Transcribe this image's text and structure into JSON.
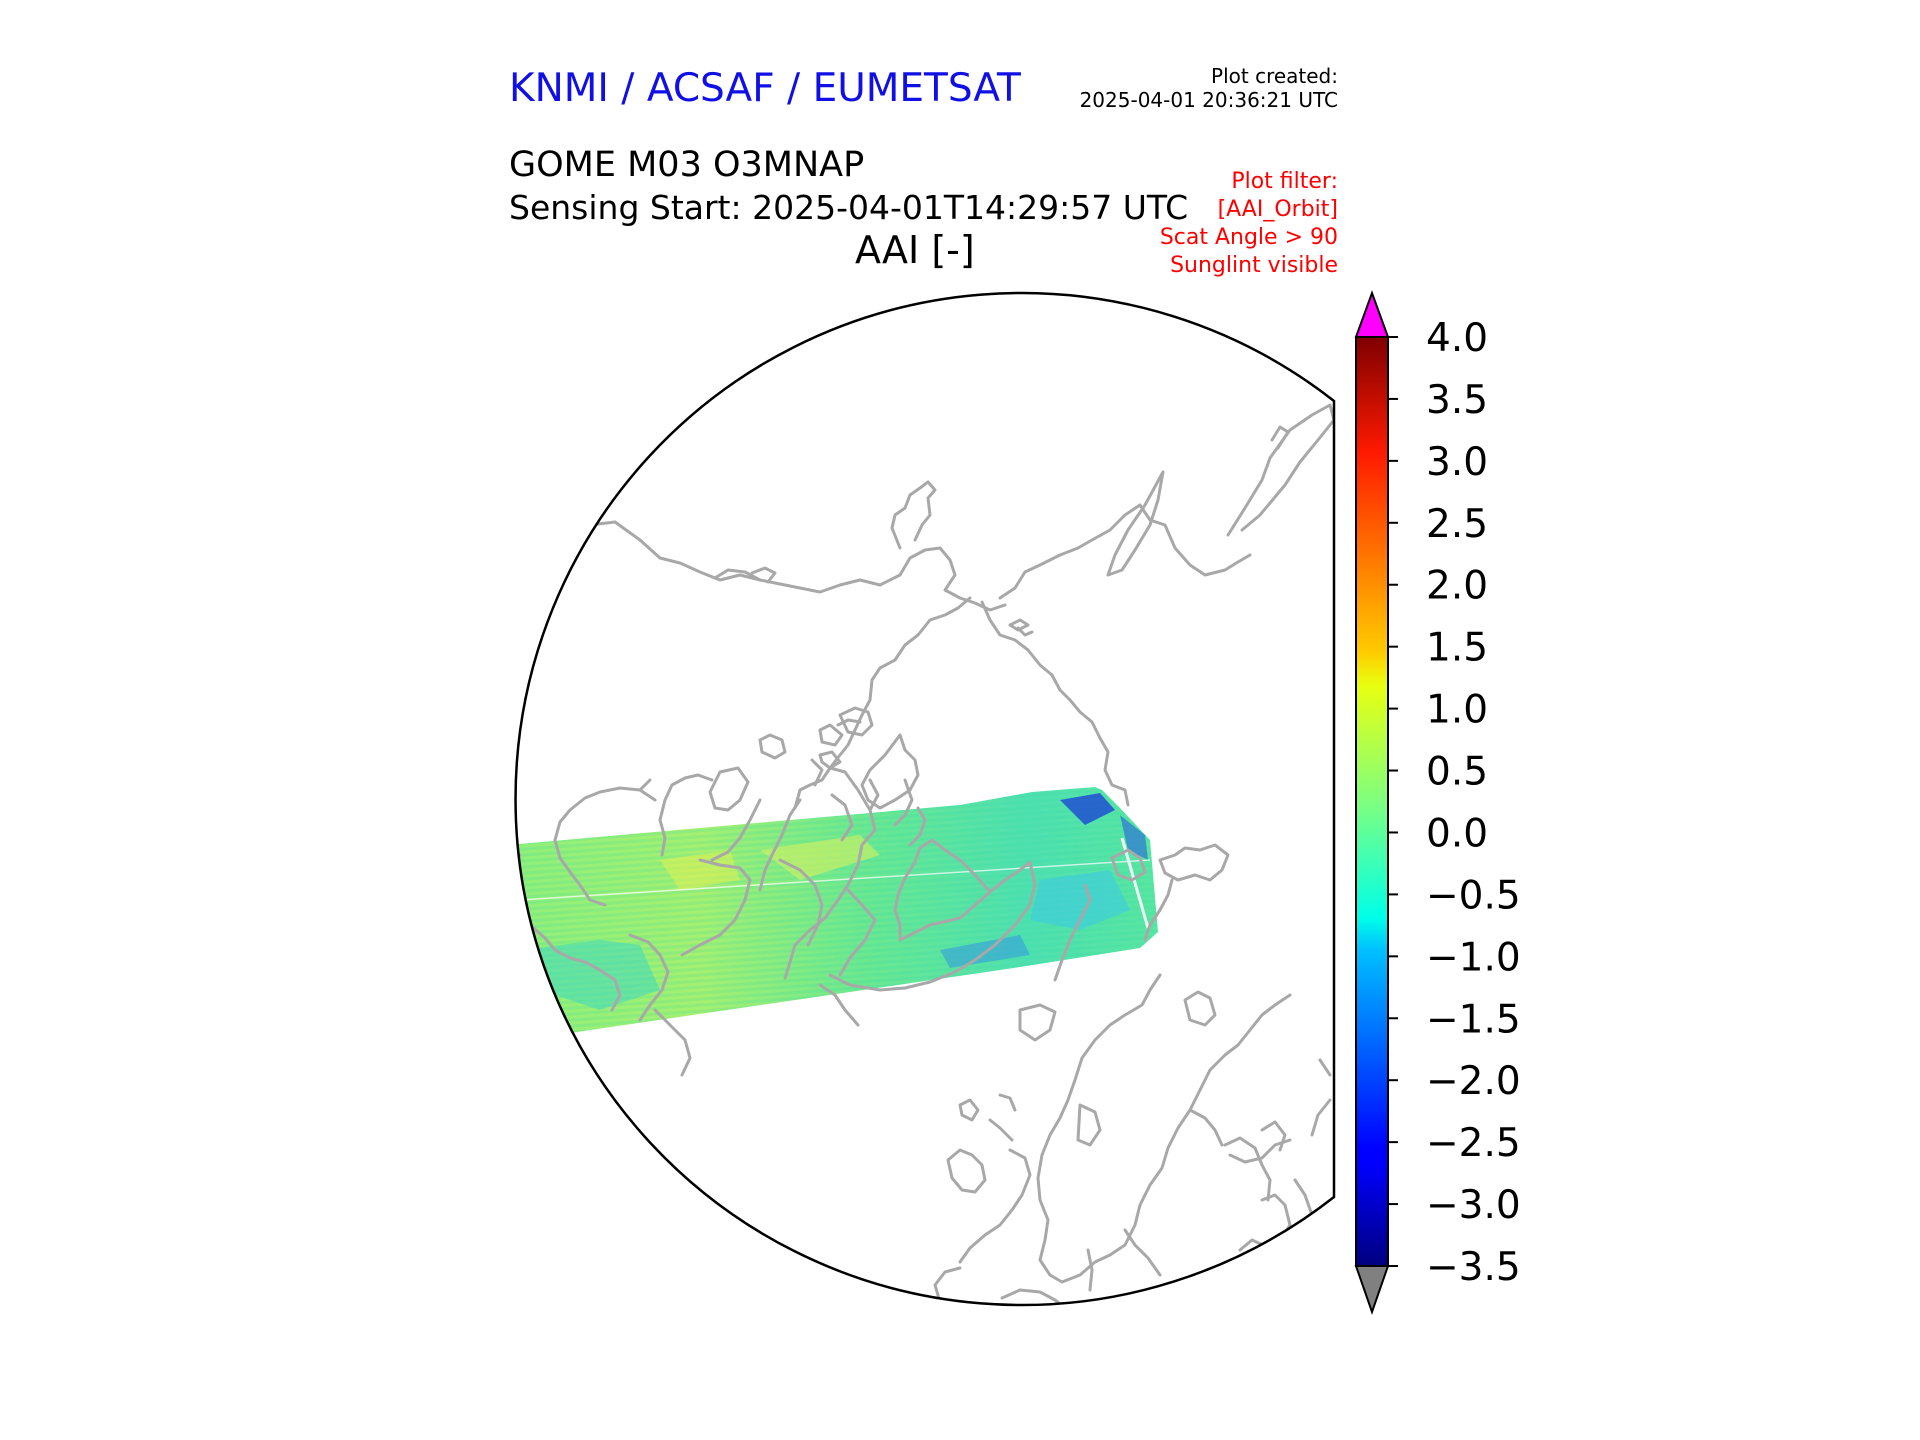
{
  "header": {
    "organization": "KNMI / ACSAF / EUMETSAT",
    "plot_created_label": "Plot created:",
    "plot_created_value": "2025-04-01 20:36:21 UTC",
    "product": "GOME M03 O3MNAP",
    "sensing_start": "Sensing Start: 2025-04-01T14:29:57 UTC",
    "variable_title": "AAI [-]",
    "plot_filter_label": "Plot filter:",
    "plot_filters": [
      "[AAI_Orbit]",
      "Scat Angle > 90",
      "Sunglint visible"
    ]
  },
  "colorbar": {
    "colormap": "jet",
    "range": [
      -3.5,
      4.0
    ],
    "ticks": [
      "4.0",
      "3.5",
      "3.0",
      "2.5",
      "2.0",
      "1.5",
      "1.0",
      "0.5",
      "0.0",
      "−0.5",
      "−1.0",
      "−1.5",
      "−2.0",
      "−2.5",
      "−3.0",
      "−3.5"
    ],
    "extend_max_color": "#ff00ff",
    "extend_min_color": "#808080"
  },
  "colors": {
    "coastline": "#a8a8a8",
    "title_blue": "#1010e6",
    "filter_red": "#ff0000"
  }
}
